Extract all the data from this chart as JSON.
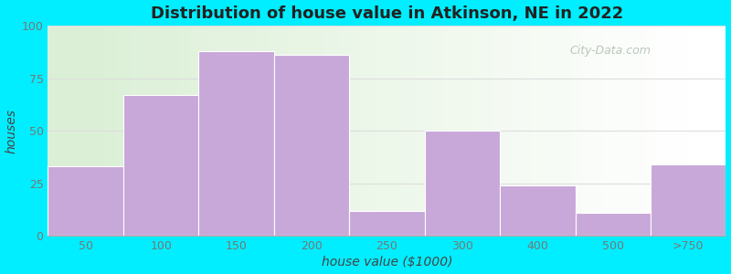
{
  "categories": [
    "50",
    "100",
    "150",
    "200",
    "250",
    "300",
    "400",
    "500",
    ">750"
  ],
  "values": [
    33,
    67,
    88,
    86,
    12,
    50,
    24,
    11,
    34
  ],
  "bar_color": "#c8a8d8",
  "bar_edgecolor": "#ffffff",
  "title": "Distribution of house value in Atkinson, NE in 2022",
  "xlabel": "house value ($1000)",
  "ylabel": "houses",
  "ylim": [
    0,
    100
  ],
  "yticks": [
    0,
    25,
    50,
    75,
    100
  ],
  "bg_outer": "#00eeff",
  "title_fontsize": 13,
  "axis_label_fontsize": 10,
  "watermark_text": "City-Data.com",
  "watermark_color": "#b0bdb0",
  "bar_width": 1.0,
  "grid_color": "#dddddd",
  "tick_color": "#777777"
}
